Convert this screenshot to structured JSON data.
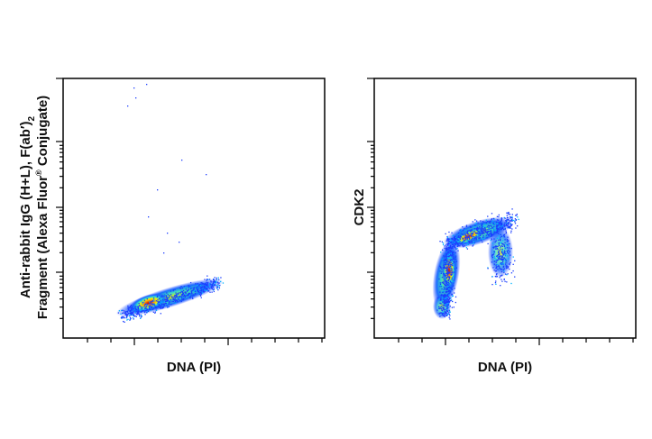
{
  "panels": [
    {
      "x_label": "DNA (PI)",
      "y_label": {
        "line1": "Anti-rabbit IgG (H+L), F(ab′)",
        "line1_sub": "2",
        "line2": "Fragment (Alexa Fluor",
        "line2_sup": "®",
        "line2_end": " Conjugate)"
      }
    },
    {
      "x_label": "DNA (PI)",
      "y_label": {
        "line1": "CDK2"
      }
    }
  ]
}
